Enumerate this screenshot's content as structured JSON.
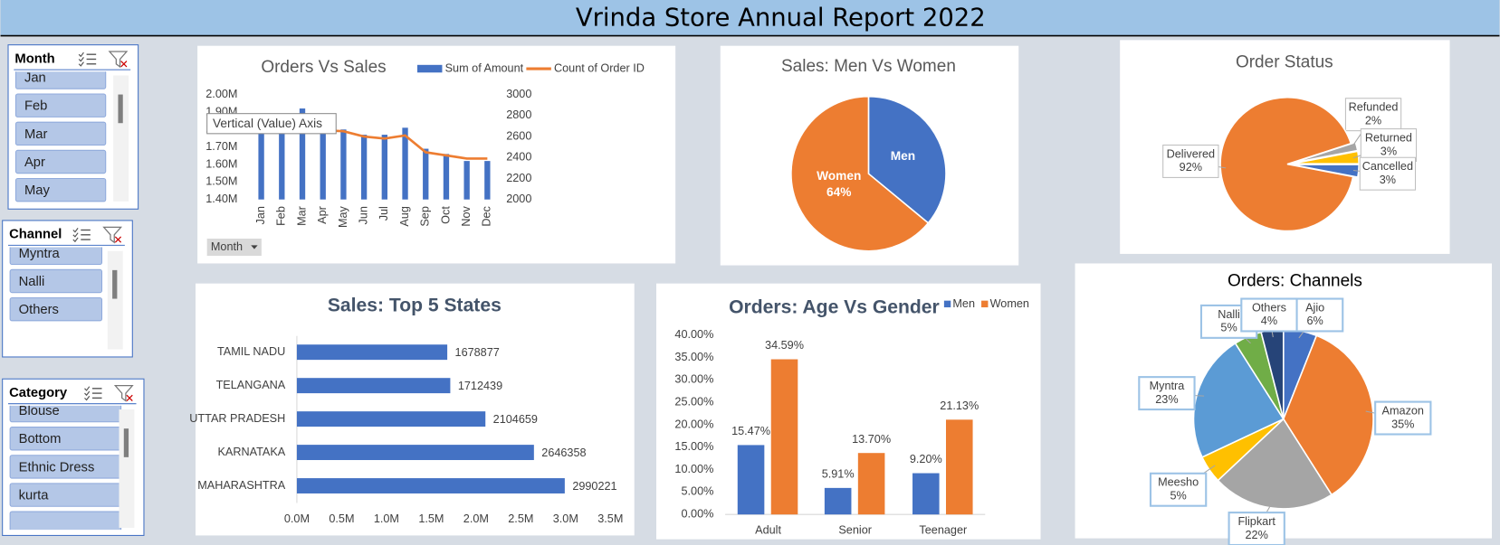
{
  "header": {
    "title": "Vrinda Store Annual Report 2022"
  },
  "slicers": {
    "month": {
      "title": "Month",
      "items": [
        "Jan",
        "Feb",
        "Mar",
        "Apr",
        "May"
      ]
    },
    "channel": {
      "title": "Channel",
      "items": [
        "Myntra",
        "Nalli",
        "Others"
      ]
    },
    "category": {
      "title": "Category",
      "items": [
        "Blouse",
        "Bottom",
        "Ethnic Dress",
        "kurta",
        null
      ]
    }
  },
  "chart_data": [
    {
      "type": "combo",
      "title": "Orders Vs Sales",
      "categories": [
        "Jan",
        "Feb",
        "Mar",
        "Apr",
        "May",
        "Jun",
        "Jul",
        "Aug",
        "Sep",
        "Oct",
        "Nov",
        "Dec"
      ],
      "series": [
        {
          "name": "Sum of Amount",
          "type": "bar",
          "color": "#4472c4",
          "values": [
            1810000,
            1790000,
            1920000,
            1790000,
            1800000,
            1770000,
            1770000,
            1810000,
            1690000,
            1660000,
            1620000,
            1620000
          ]
        },
        {
          "name": "Count of Order ID",
          "type": "line",
          "axis": "y2",
          "color": "#ed7d31",
          "values": [
            2680,
            2650,
            2700,
            2660,
            2650,
            2600,
            2580,
            2610,
            2450,
            2420,
            2390,
            2390
          ]
        }
      ],
      "ylim": [
        1400000,
        2000000
      ],
      "yticks": [
        {
          "value": 1400000,
          "label": "1.40M"
        },
        {
          "value": 1500000,
          "label": "1.50M"
        },
        {
          "value": 1600000,
          "label": "1.60M"
        },
        {
          "value": 1700000,
          "label": "1.70M"
        },
        {
          "value": 1800000,
          "label": "1.80M"
        },
        {
          "value": 1900000,
          "label": "1.90M"
        },
        {
          "value": 2000000,
          "label": "2.00M"
        }
      ],
      "y2lim": [
        2000,
        3000
      ],
      "y2ticks": [
        2000,
        2200,
        2400,
        2600,
        2800,
        3000
      ],
      "annotation": "Vertical (Value) Axis",
      "filter_button": "Month",
      "grid": false
    },
    {
      "type": "pie",
      "title": "Sales: Men Vs Women",
      "categories": [
        "Men",
        "Women"
      ],
      "values": [
        36,
        64
      ],
      "value_labels": [
        null,
        "64%"
      ],
      "colors": [
        "#4472c4",
        "#ed7d31"
      ]
    },
    {
      "type": "pie",
      "title": "Order Status",
      "categories": [
        "Refunded",
        "Returned",
        "Cancelled",
        "Delivered"
      ],
      "values": [
        2,
        3,
        3,
        92
      ],
      "value_labels": [
        "2%",
        "3%",
        "3%",
        "92%"
      ],
      "colors": [
        "#a5a5a5",
        "#ffc000",
        "#4472c4",
        "#ed7d31"
      ]
    },
    {
      "type": "bar",
      "orientation": "horizontal",
      "title": "Sales: Top 5 States",
      "categories": [
        "TAMIL NADU",
        "TELANGANA",
        "UTTAR PRADESH",
        "KARNATAKA",
        "MAHARASHTRA"
      ],
      "values": [
        1678877,
        1712439,
        2104659,
        2646358,
        2990221
      ],
      "color": "#4472c4",
      "xlim": [
        0,
        3500000
      ],
      "xticks": [
        {
          "value": 0,
          "label": "0.0M"
        },
        {
          "value": 500000,
          "label": "0.5M"
        },
        {
          "value": 1000000,
          "label": "1.0M"
        },
        {
          "value": 1500000,
          "label": "1.5M"
        },
        {
          "value": 2000000,
          "label": "2.0M"
        },
        {
          "value": 2500000,
          "label": "2.5M"
        },
        {
          "value": 3000000,
          "label": "3.0M"
        },
        {
          "value": 3500000,
          "label": "3.5M"
        }
      ]
    },
    {
      "type": "bar",
      "orientation": "vertical",
      "title": "Orders: Age Vs Gender",
      "categories": [
        "Adult",
        "Senior",
        "Teenager"
      ],
      "series": [
        {
          "name": "Men",
          "color": "#4472c4",
          "values": [
            15.47,
            5.91,
            9.2
          ],
          "value_labels": [
            "15.47%",
            "5.91%",
            "9.20%"
          ]
        },
        {
          "name": "Women",
          "color": "#ed7d31",
          "values": [
            34.59,
            13.7,
            21.13
          ],
          "value_labels": [
            "34.59%",
            "13.70%",
            "21.13%"
          ]
        }
      ],
      "ylim": [
        0,
        40
      ],
      "yticks": [
        {
          "value": 0,
          "label": "0.00%"
        },
        {
          "value": 5,
          "label": "5.00%"
        },
        {
          "value": 10,
          "label": "10.00%"
        },
        {
          "value": 15,
          "label": "15.00%"
        },
        {
          "value": 20,
          "label": "20.00%"
        },
        {
          "value": 25,
          "label": "25.00%"
        },
        {
          "value": 30,
          "label": "30.00%"
        },
        {
          "value": 35,
          "label": "35.00%"
        },
        {
          "value": 40,
          "label": "40.00%"
        }
      ]
    },
    {
      "type": "pie",
      "title": "Orders: Channels",
      "categories": [
        "Ajio",
        "Amazon",
        "Flipkart",
        "Meesho",
        "Myntra",
        "Nalli",
        "Others"
      ],
      "values": [
        6,
        35,
        22,
        5,
        23,
        5,
        4
      ],
      "value_labels": [
        "6%",
        "35%",
        "22%",
        "5%",
        "23%",
        "5%",
        "4%"
      ],
      "colors": [
        "#4472c4",
        "#ed7d31",
        "#a5a5a5",
        "#ffc000",
        "#5b9bd5",
        "#70ad47",
        "#264478"
      ]
    }
  ]
}
